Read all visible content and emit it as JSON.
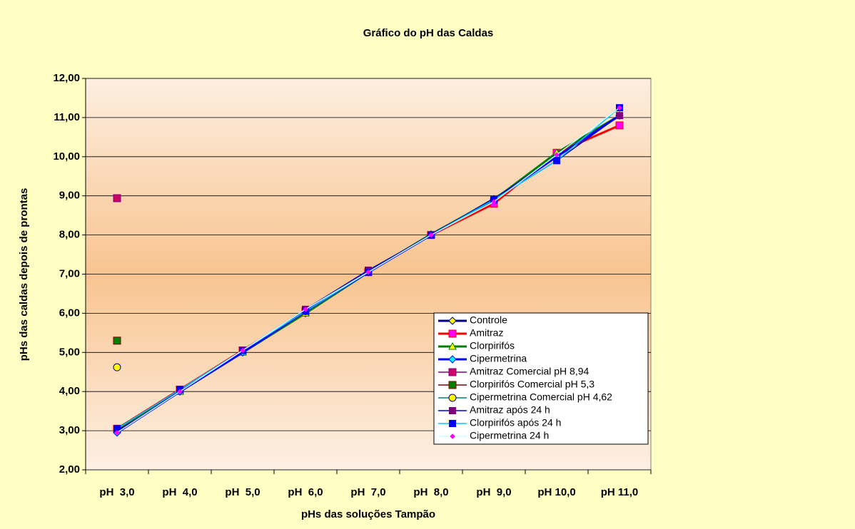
{
  "chart_data": {
    "type": "line",
    "title": "Gráfico do pH das Caldas",
    "x_label": "pHs das soluções Tampão",
    "y_label": "pHs das caldas depois de prontas",
    "categories": [
      "pH  3,0",
      "pH  4,0",
      "pH  5,0",
      "pH  6,0",
      "pH  7,0",
      "pH  8,0",
      "pH  9,0",
      "pH 10,0",
      "pH 11,0"
    ],
    "ylim": [
      2,
      12
    ],
    "yticks": [
      {
        "value": 2,
        "label": "2,00"
      },
      {
        "value": 3,
        "label": "3,00"
      },
      {
        "value": 4,
        "label": "4,00"
      },
      {
        "value": 5,
        "label": "5,00"
      },
      {
        "value": 6,
        "label": "6,00"
      },
      {
        "value": 7,
        "label": "7,00"
      },
      {
        "value": 8,
        "label": "8,00"
      },
      {
        "value": 9,
        "label": "9,00"
      },
      {
        "value": 10,
        "label": "10,00"
      },
      {
        "value": 11,
        "label": "11,00"
      },
      {
        "value": 12,
        "label": "12,00"
      }
    ],
    "grid": true,
    "legend": "lower right",
    "series": [
      {
        "name": "Controle",
        "color": "#000080",
        "marker": "diamond",
        "marker_color": "#ffff00",
        "values": [
          3.0,
          4.0,
          5.0,
          6.0,
          7.05,
          8.0,
          8.92,
          10.0,
          11.05
        ]
      },
      {
        "name": "Amitraz",
        "color": "#ff0000",
        "marker": "square",
        "marker_color": "#ff00ff",
        "values": [
          3.05,
          4.05,
          5.05,
          6.05,
          7.05,
          8.0,
          8.8,
          10.1,
          10.8
        ]
      },
      {
        "name": "Clorpirifós",
        "color": "#008000",
        "marker": "triangle",
        "marker_color": "#ffff00",
        "values": [
          3.05,
          4.0,
          5.0,
          6.0,
          7.05,
          8.02,
          8.9,
          10.1,
          11.05
        ]
      },
      {
        "name": "Cipermetrina",
        "color": "#0000ff",
        "marker": "diamond",
        "marker_color": "#00ffff",
        "values": [
          2.95,
          4.0,
          5.0,
          6.05,
          7.05,
          8.0,
          8.9,
          10.0,
          11.05
        ]
      },
      {
        "name": "Amitraz Comercial pH 8,94",
        "color": "#800080",
        "marker": "square",
        "marker_color": "#cc0066",
        "values": [
          8.94,
          null,
          null,
          null,
          null,
          null,
          null,
          null,
          null
        ]
      },
      {
        "name": "Clorpirifós Comercial pH 5,3",
        "color": "#800000",
        "marker": "square",
        "marker_color": "#008000",
        "values": [
          5.3,
          null,
          null,
          null,
          null,
          null,
          null,
          null,
          null
        ]
      },
      {
        "name": "Cipermetrina Comercial pH 4,62",
        "color": "#008080",
        "marker": "circle",
        "marker_color": "#ffff00",
        "values": [
          4.62,
          null,
          null,
          null,
          null,
          null,
          null,
          null,
          null
        ]
      },
      {
        "name": "Amitraz após 24 h",
        "color": "#0000cc",
        "marker": "x",
        "marker_color": "#800080",
        "values": [
          3.05,
          4.05,
          5.05,
          6.1,
          7.1,
          8.0,
          8.9,
          9.9,
          11.05
        ]
      },
      {
        "name": "Clorpirifós após 24 h",
        "color": "#00ccff",
        "marker": "plus",
        "marker_color": "#0000ff",
        "values": [
          3.05,
          4.05,
          5.05,
          6.05,
          7.05,
          8.0,
          8.9,
          9.9,
          11.25
        ]
      },
      {
        "name": "Cipermetrina 24 h",
        "color": "#ccffff",
        "marker": "small-diamond",
        "marker_color": "#ff00ff",
        "values": [
          2.95,
          4.0,
          5.05,
          6.1,
          7.05,
          8.0,
          8.85,
          10.05,
          11.25
        ]
      }
    ]
  }
}
